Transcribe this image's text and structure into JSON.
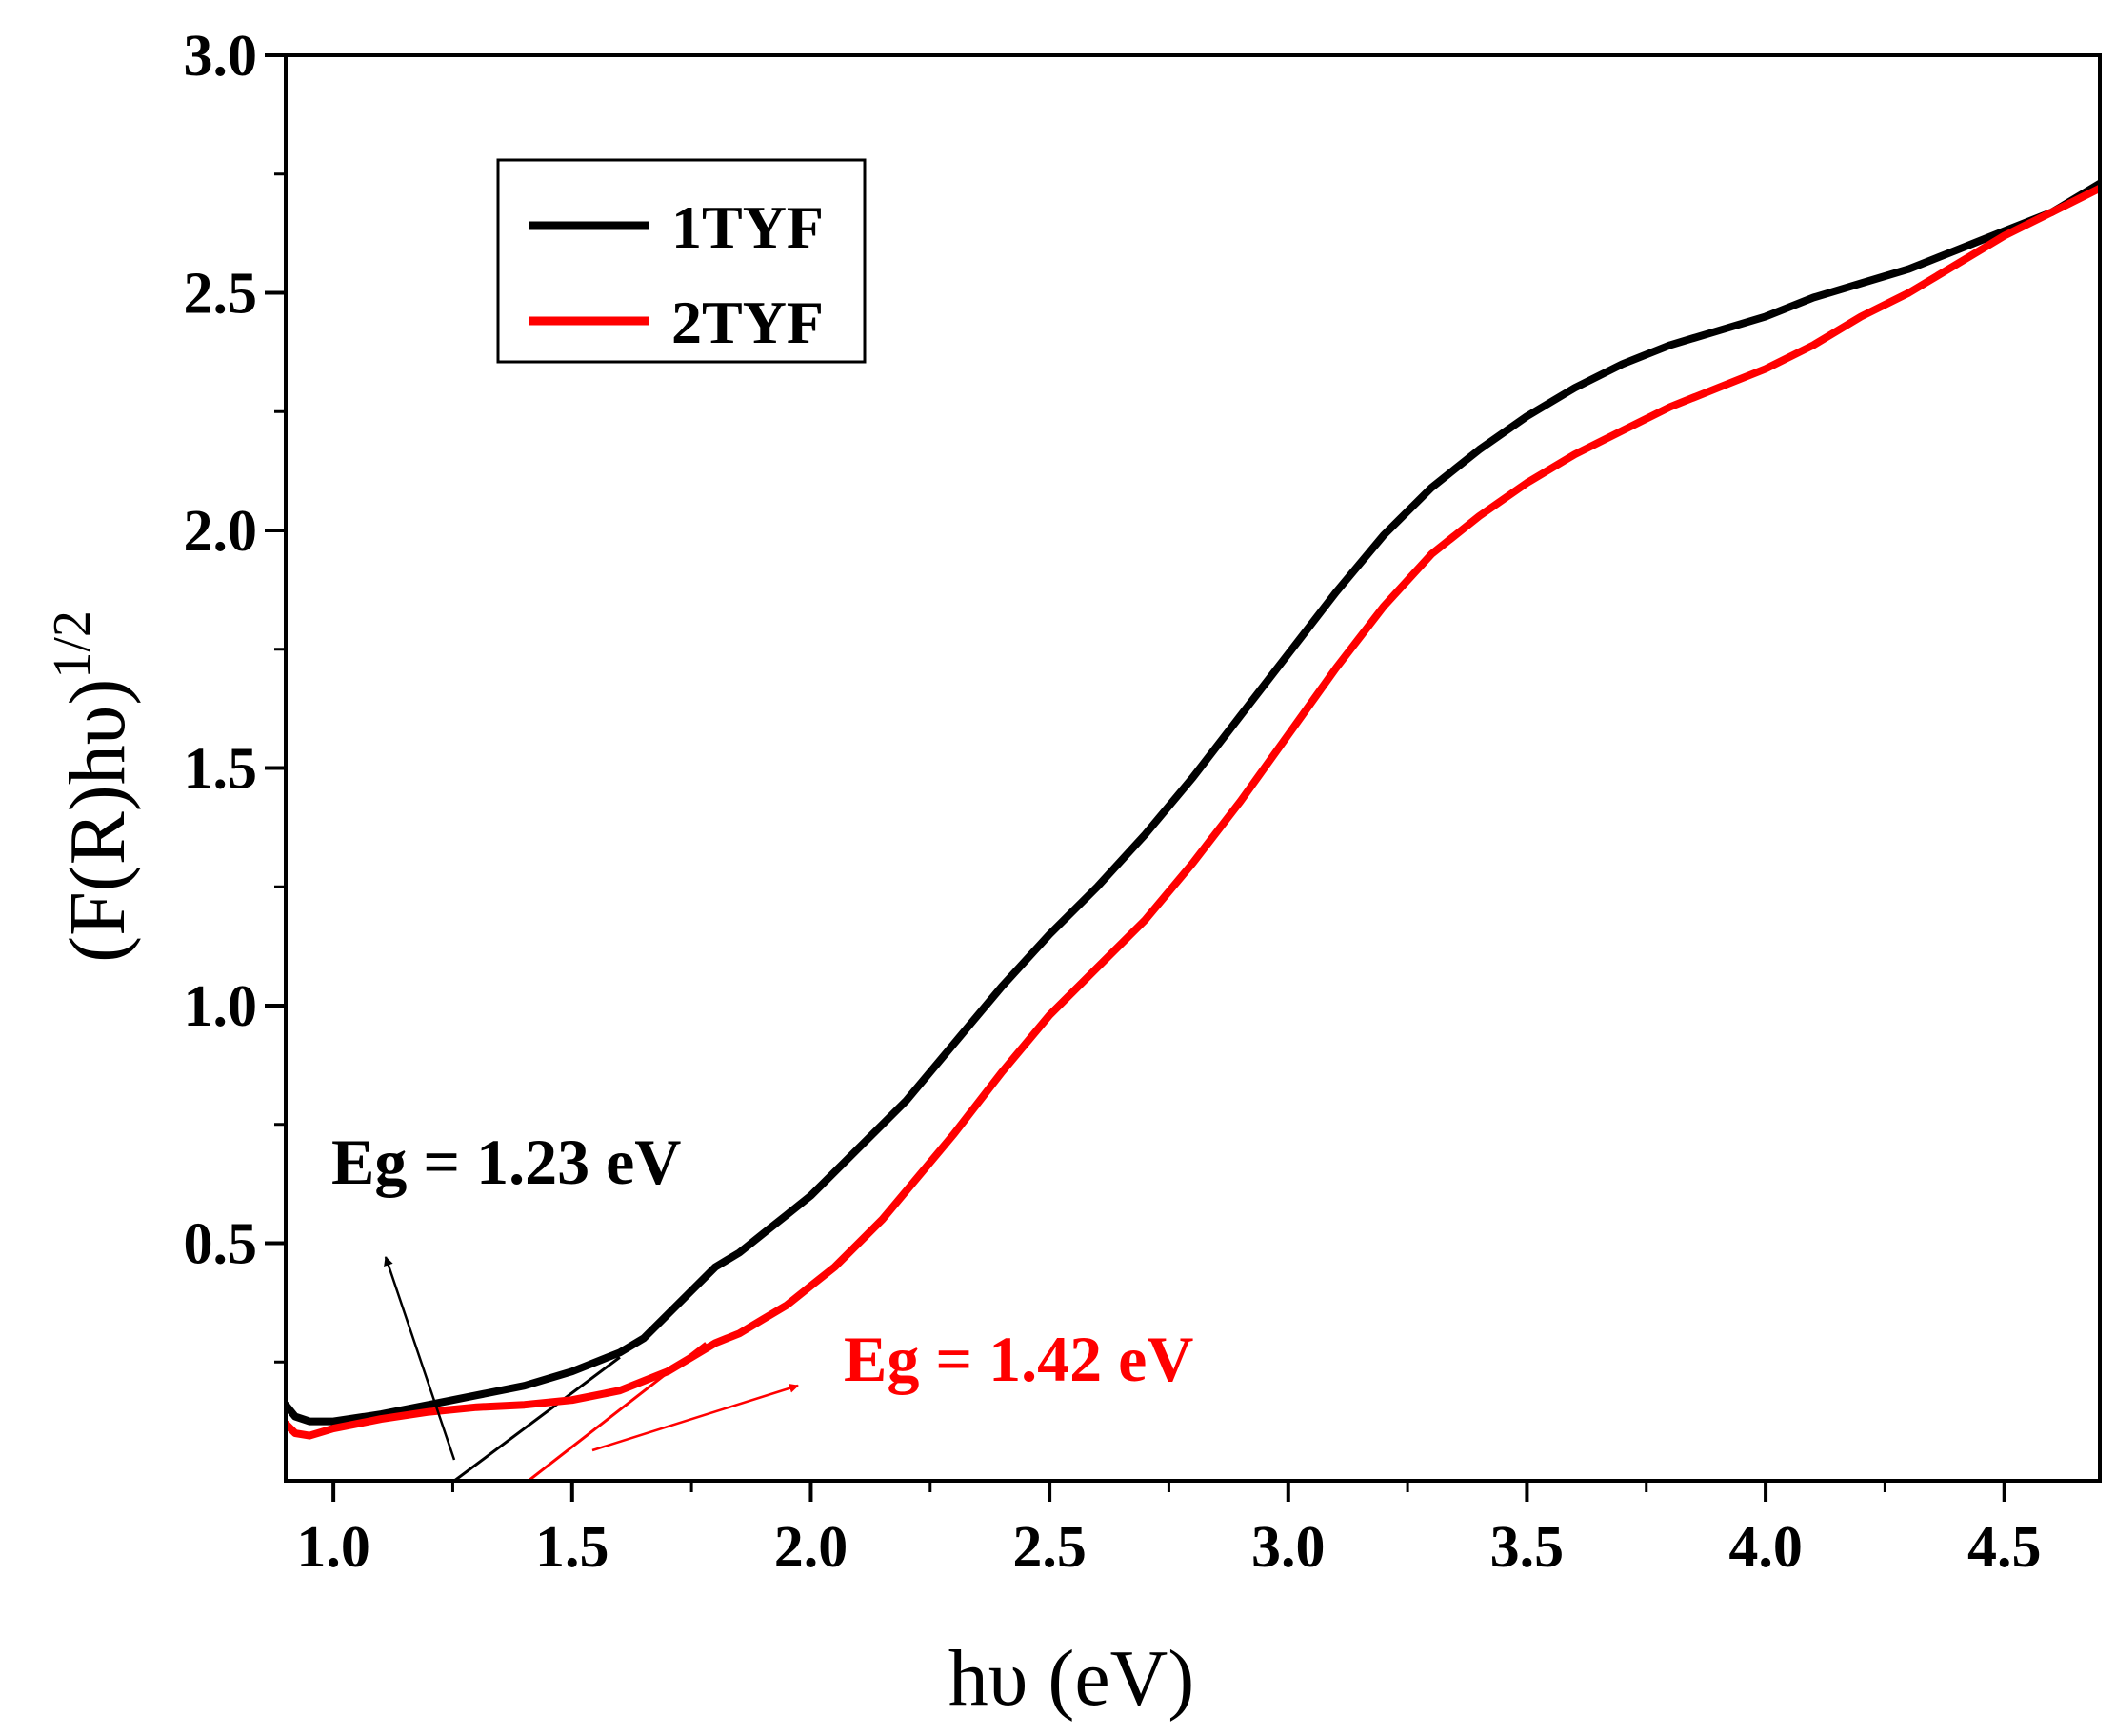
{
  "chart_data": {
    "type": "line",
    "xlabel": "hυ (eV)",
    "ylabel_main": "(F(R)hυ)",
    "ylabel_sup": "1/2",
    "xlim": [
      0.9,
      4.7
    ],
    "ylim": [
      0.0,
      3.0
    ],
    "xticks": [
      1.0,
      1.5,
      2.0,
      2.5,
      3.0,
      3.5,
      4.0,
      4.5
    ],
    "yticks": [
      0.5,
      1.0,
      1.5,
      2.0,
      2.5,
      3.0
    ],
    "xtick_labels": [
      "1.0",
      "1.5",
      "2.0",
      "2.5",
      "3.0",
      "3.5",
      "4.0",
      "4.5"
    ],
    "ytick_labels": [
      "0.5",
      "1.0",
      "1.5",
      "2.0",
      "2.5",
      "3.0"
    ],
    "legend_position": "top-left",
    "series": [
      {
        "name": "1TYF",
        "color": "#000000",
        "x": [
          0.9,
          0.92,
          0.95,
          1.0,
          1.1,
          1.2,
          1.3,
          1.4,
          1.5,
          1.6,
          1.65,
          1.7,
          1.75,
          1.8,
          1.85,
          1.9,
          1.95,
          2.0,
          2.05,
          2.1,
          2.15,
          2.2,
          2.3,
          2.4,
          2.5,
          2.6,
          2.7,
          2.8,
          2.9,
          3.0,
          3.1,
          3.2,
          3.3,
          3.4,
          3.5,
          3.6,
          3.7,
          3.8,
          3.9,
          4.0,
          4.1,
          4.2,
          4.3,
          4.4,
          4.5,
          4.6,
          4.7
        ],
        "y": [
          0.16,
          0.135,
          0.125,
          0.125,
          0.14,
          0.16,
          0.18,
          0.2,
          0.23,
          0.27,
          0.3,
          0.35,
          0.4,
          0.45,
          0.48,
          0.52,
          0.56,
          0.6,
          0.65,
          0.7,
          0.75,
          0.8,
          0.92,
          1.04,
          1.15,
          1.25,
          1.36,
          1.48,
          1.61,
          1.74,
          1.87,
          1.99,
          2.09,
          2.17,
          2.24,
          2.3,
          2.35,
          2.39,
          2.42,
          2.45,
          2.49,
          2.52,
          2.55,
          2.59,
          2.63,
          2.67,
          2.73
        ]
      },
      {
        "name": "2TYF",
        "color": "#ff0000",
        "x": [
          0.9,
          0.92,
          0.95,
          1.0,
          1.1,
          1.2,
          1.3,
          1.4,
          1.5,
          1.6,
          1.65,
          1.7,
          1.75,
          1.8,
          1.85,
          1.9,
          1.95,
          2.0,
          2.05,
          2.1,
          2.15,
          2.2,
          2.3,
          2.4,
          2.5,
          2.6,
          2.7,
          2.8,
          2.9,
          3.0,
          3.1,
          3.2,
          3.3,
          3.4,
          3.5,
          3.6,
          3.7,
          3.8,
          3.9,
          4.0,
          4.1,
          4.2,
          4.3,
          4.4,
          4.5,
          4.6,
          4.7
        ],
        "y": [
          0.12,
          0.1,
          0.095,
          0.11,
          0.13,
          0.145,
          0.155,
          0.16,
          0.17,
          0.19,
          0.21,
          0.23,
          0.26,
          0.29,
          0.31,
          0.34,
          0.37,
          0.41,
          0.45,
          0.5,
          0.55,
          0.61,
          0.73,
          0.86,
          0.98,
          1.08,
          1.18,
          1.3,
          1.43,
          1.57,
          1.71,
          1.84,
          1.95,
          2.03,
          2.1,
          2.16,
          2.21,
          2.26,
          2.3,
          2.34,
          2.39,
          2.45,
          2.5,
          2.56,
          2.62,
          2.67,
          2.72
        ]
      }
    ],
    "tangent_lines": [
      {
        "series": "1TYF",
        "color": "#000000",
        "x": [
          1.2,
          1.6
        ],
        "y": [
          -0.04,
          0.26
        ]
      },
      {
        "series": "2TYF",
        "color": "#ff0000",
        "x": [
          1.37,
          1.78
        ],
        "y": [
          -0.03,
          0.29
        ]
      }
    ],
    "annotations": [
      {
        "text": "Eg = 1.23 eV",
        "color": "#000000"
      },
      {
        "text": "Eg = 1.42 eV",
        "color": "#ff0000"
      }
    ]
  }
}
